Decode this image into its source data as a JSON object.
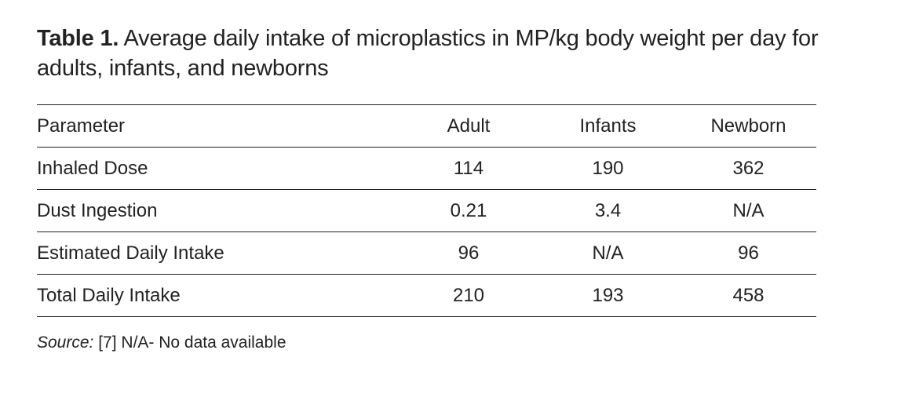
{
  "caption": {
    "label": "Table 1.",
    "text": "Average daily intake of microplastics in MP/kg body weight per day for adults, infants, and newborns"
  },
  "table": {
    "headers": [
      "Parameter",
      "Adult",
      "Infants",
      "Newborn"
    ],
    "rows": [
      [
        "Inhaled Dose",
        "114",
        "190",
        "362"
      ],
      [
        "Dust Ingestion",
        "0.21",
        "3.4",
        "N/A"
      ],
      [
        "Estimated Daily Intake",
        "96",
        "N/A",
        "96"
      ],
      [
        "Total Daily Intake",
        "210",
        "193",
        "458"
      ]
    ]
  },
  "footnote": {
    "source_label": "Source:",
    "source_text": "[7] N/A- No data available"
  }
}
